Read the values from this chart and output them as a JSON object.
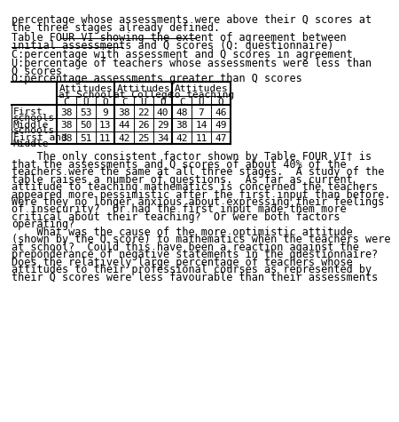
{
  "title_line1_normal": "Table FOUR VI ",
  "title_line1_underlined": "showing the extent of agreement between",
  "title_line2_underlined": "initial assessments and Q scores",
  "title_line2_suffix": " (Q: questionnaire)",
  "legend_c": "C:percentage with assessment and Q scores in agreement",
  "legend_u1": "U:percentage of teachers whose assessments were less than",
  "legend_u2": "Q scores",
  "legend_o": "O:percentage assessments greater than Q scores",
  "col_groups": [
    "Attitudes\nat School",
    "Attitudes\nat College",
    "Attitudes\nto teaching"
  ],
  "col_subheaders": [
    "C",
    "U",
    "O"
  ],
  "row_labels": [
    "First\nschools",
    "Middle\nschools",
    "First and\nMiddle"
  ],
  "data": [
    [
      38,
      53,
      9,
      38,
      22,
      40,
      48,
      7,
      46
    ],
    [
      38,
      50,
      13,
      44,
      26,
      29,
      38,
      14,
      49
    ],
    [
      38,
      51,
      11,
      42,
      25,
      34,
      42,
      11,
      47
    ]
  ],
  "intro_line1": "percentage whose assessments were above their Q scores at",
  "intro_line2": "the three stages already defined.",
  "body_lines": [
    "    The only consistent factor shown by Table FOUR VI† is",
    "that the assessments and Q scores of about 40% of the",
    "teachers were the same at all three stages.  A study of the",
    "table raises a number of questions.  As far as current",
    "attitude to teaching mathematics is concerned the teachers",
    "appeared more pessimistic after the first input than before.",
    "Were they no longer anxious about expressing their feelings",
    "of insecurity?  Or had the first input made them more",
    "critical about their teaching?  Or were both factors",
    "operating?",
    "    What was the cause of the more optimistic attitude",
    "(shown by the Q score) to mathematics when the teachers were",
    "at school?  Could this have been a reaction against the",
    "preponderance of negative statements in the questionnaire?",
    "Does the relatively large percentage of teachers whose",
    "attitudes to their professional courses as represented by",
    "their Q scores were less favourable than their assessments"
  ],
  "bg_color": "#ffffff",
  "font_family": "monospace",
  "font_size": 8.5
}
